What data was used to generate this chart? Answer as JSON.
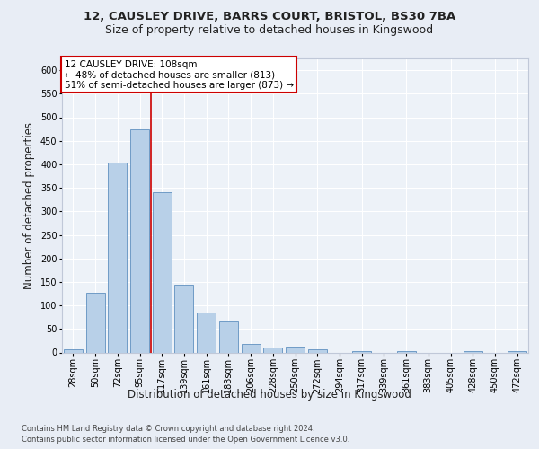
{
  "title_line1": "12, CAUSLEY DRIVE, BARRS COURT, BRISTOL, BS30 7BA",
  "title_line2": "Size of property relative to detached houses in Kingswood",
  "xlabel": "Distribution of detached houses by size in Kingswood",
  "ylabel": "Number of detached properties",
  "categories": [
    "28sqm",
    "50sqm",
    "72sqm",
    "95sqm",
    "117sqm",
    "139sqm",
    "161sqm",
    "183sqm",
    "206sqm",
    "228sqm",
    "250sqm",
    "272sqm",
    "294sqm",
    "317sqm",
    "339sqm",
    "361sqm",
    "383sqm",
    "405sqm",
    "428sqm",
    "450sqm",
    "472sqm"
  ],
  "values": [
    7,
    127,
    403,
    475,
    340,
    145,
    85,
    65,
    18,
    10,
    13,
    6,
    0,
    3,
    0,
    3,
    0,
    0,
    3,
    0,
    3
  ],
  "bar_color": "#b8d0e8",
  "bar_edge_color": "#6090c0",
  "red_line_x": 3.5,
  "annotation_title": "12 CAUSLEY DRIVE: 108sqm",
  "annotation_line1": "← 48% of detached houses are smaller (813)",
  "annotation_line2": "51% of semi-detached houses are larger (873) →",
  "annotation_box_color": "#ffffff",
  "annotation_box_edge_color": "#cc0000",
  "red_line_color": "#cc0000",
  "ylim": [
    0,
    625
  ],
  "yticks": [
    0,
    50,
    100,
    150,
    200,
    250,
    300,
    350,
    400,
    450,
    500,
    550,
    600
  ],
  "footer_line1": "Contains HM Land Registry data © Crown copyright and database right 2024.",
  "footer_line2": "Contains public sector information licensed under the Open Government Licence v3.0.",
  "bg_color": "#e8edf5",
  "plot_bg_color": "#edf2f8",
  "title_fontsize": 9.5,
  "subtitle_fontsize": 9,
  "tick_fontsize": 7,
  "label_fontsize": 8.5,
  "footer_fontsize": 6,
  "ann_fontsize": 7.5
}
